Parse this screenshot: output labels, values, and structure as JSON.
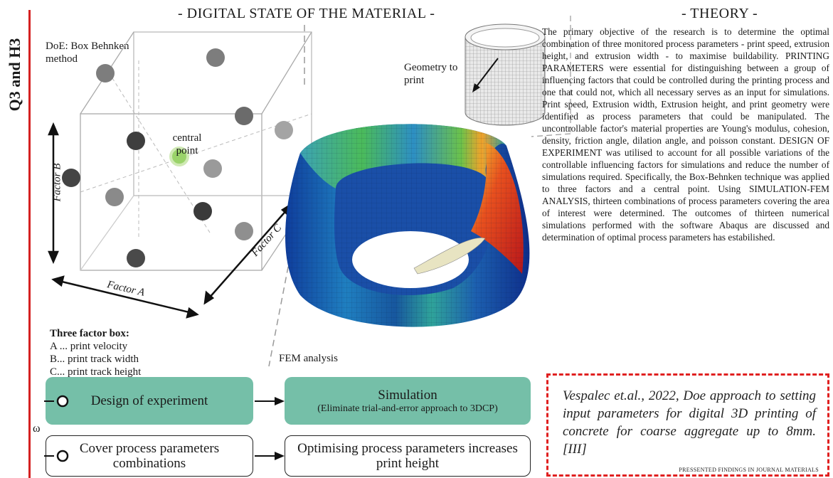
{
  "side_title": "Q3 and H3",
  "digital_state_title": "- DIGITAL STATE OF THE MATERIAL -",
  "theory_title": "- THEORY -",
  "doe_label": "DoE: Box Behnken method",
  "central_point_label": "central point",
  "factor_a": "Factor A",
  "factor_b": "Factor B",
  "factor_c": "Factor C",
  "three_factor_title": "Three factor box:",
  "factor_list": [
    "A ... print velocity",
    "B... print track width",
    "C... print track height"
  ],
  "geometry_label": "Geometry to print",
  "fem_label": "FEM analysis",
  "theory_text": "The primary objective of the research is to determine the optimal combination of three monitored process parameters - print speed, extrusion height, and extrusion width - to maximise buildability. PRINTING PARAMETERS were essential for distinguishing between a group of influencing factors that could be controlled during the printing process and one that could not, which all necessary serves as an input for simulations. Print speed, Extrusion width, Extrusion height, and print geometry were identified as process parameters that could be manipulated. The uncontrollable factor's material properties are Young's modulus, cohesion, density, friction angle, dilation angle, and poisson constant. DESIGN OF EXPERIMENT was utilised to account for all possible variations of the controllable influencing factors for simulations and reduce the number of simulations required. Specifically, the Box-Behnken technique was applied to three factors and a central point. Using SIMULATION-FEM ANALYSIS, thirteen combinations of process parameters covering the area of interest were determined. The outcomes of thirteen numerical simulations performed with the software Abaqus are discussed and determination of optimal process parameters has estabilished.",
  "flow": {
    "design": "Design of experiment",
    "simulation": "Simulation",
    "simulation_sub": "(Eliminate trial-and-error approach to 3DCP)",
    "cover": "Cover process parameters combinations",
    "optimising": "Optimising process parameters increases print height",
    "omega": "ω"
  },
  "citation": "Vespalec et.al., 2022, Doe approach to setting input parameters for digital 3D printing of concrete for coarse aggregate up to 8mm. [III]",
  "citation_note": "PRESSENTED FINDINGS IN JOURNAL MATERIALS",
  "colors": {
    "accent_red": "#d42121",
    "teal": "#75bfa8",
    "central_point": "#9ad36a"
  }
}
